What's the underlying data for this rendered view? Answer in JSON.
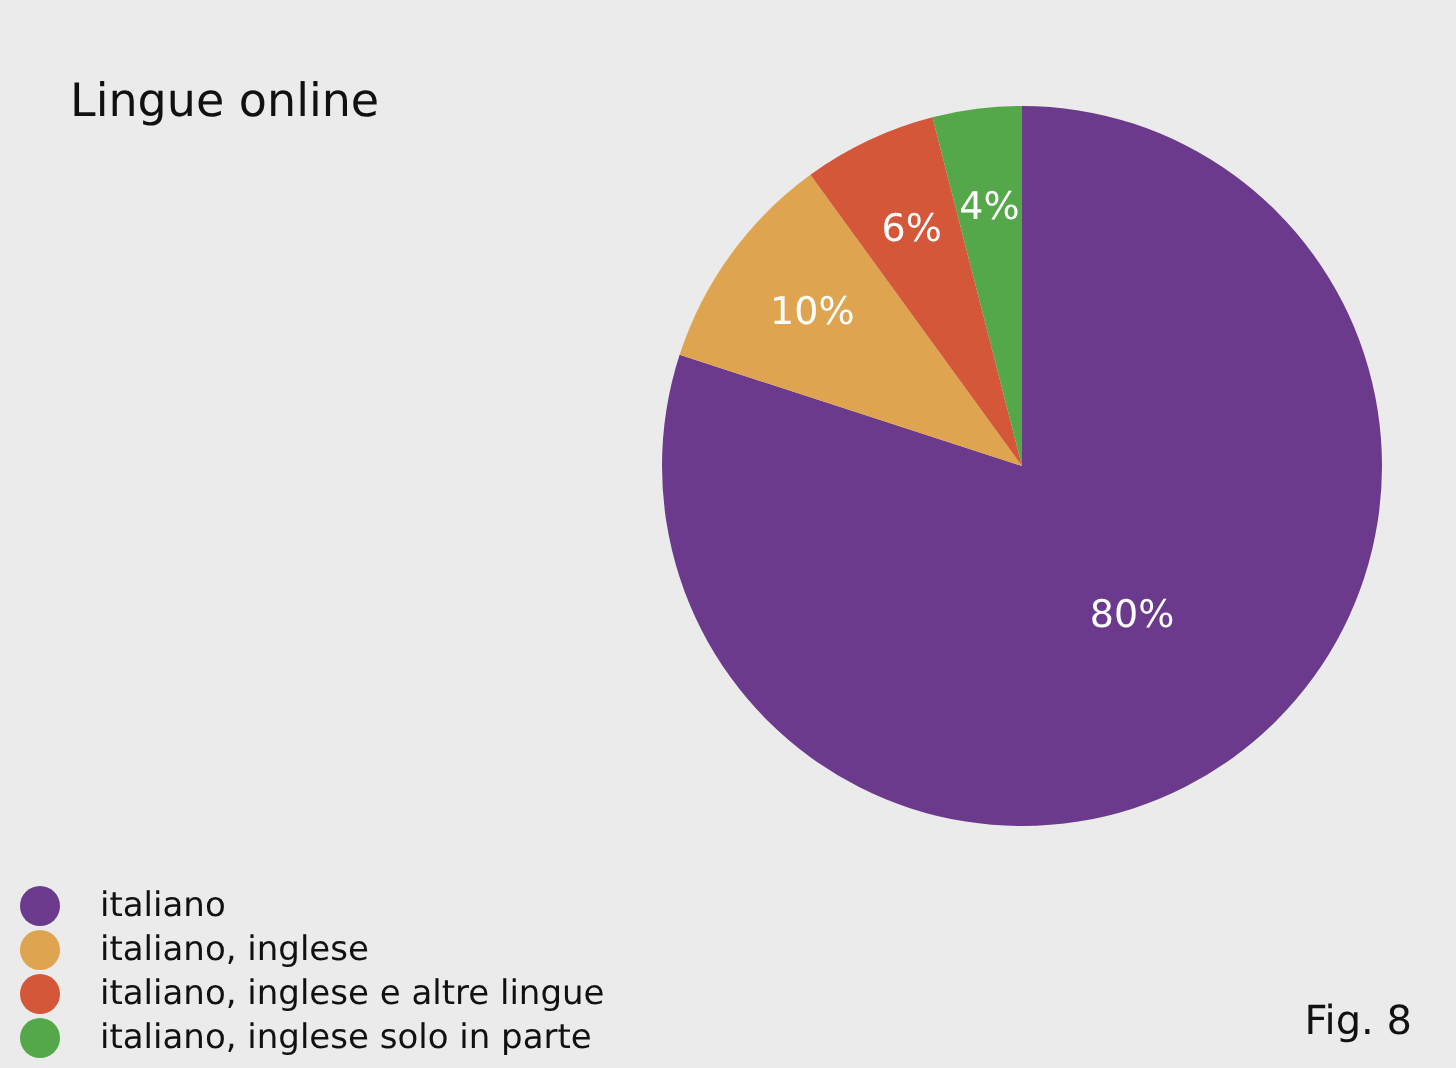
{
  "chart_data": {
    "type": "pie",
    "title": "Lingue online",
    "categories": [
      "italiano",
      "italiano, inglese",
      "italiano, inglese e altre lingue",
      "italiano, inglese solo in parte"
    ],
    "values": [
      80,
      10,
      6,
      4
    ],
    "colors": [
      "#6b3a8c",
      "#dfa450",
      "#d5573a",
      "#55a849"
    ],
    "value_labels": [
      "80%",
      "10%",
      "6%",
      "4%"
    ],
    "legend": "bottom left",
    "annotations": [
      "Fig. 8"
    ]
  }
}
